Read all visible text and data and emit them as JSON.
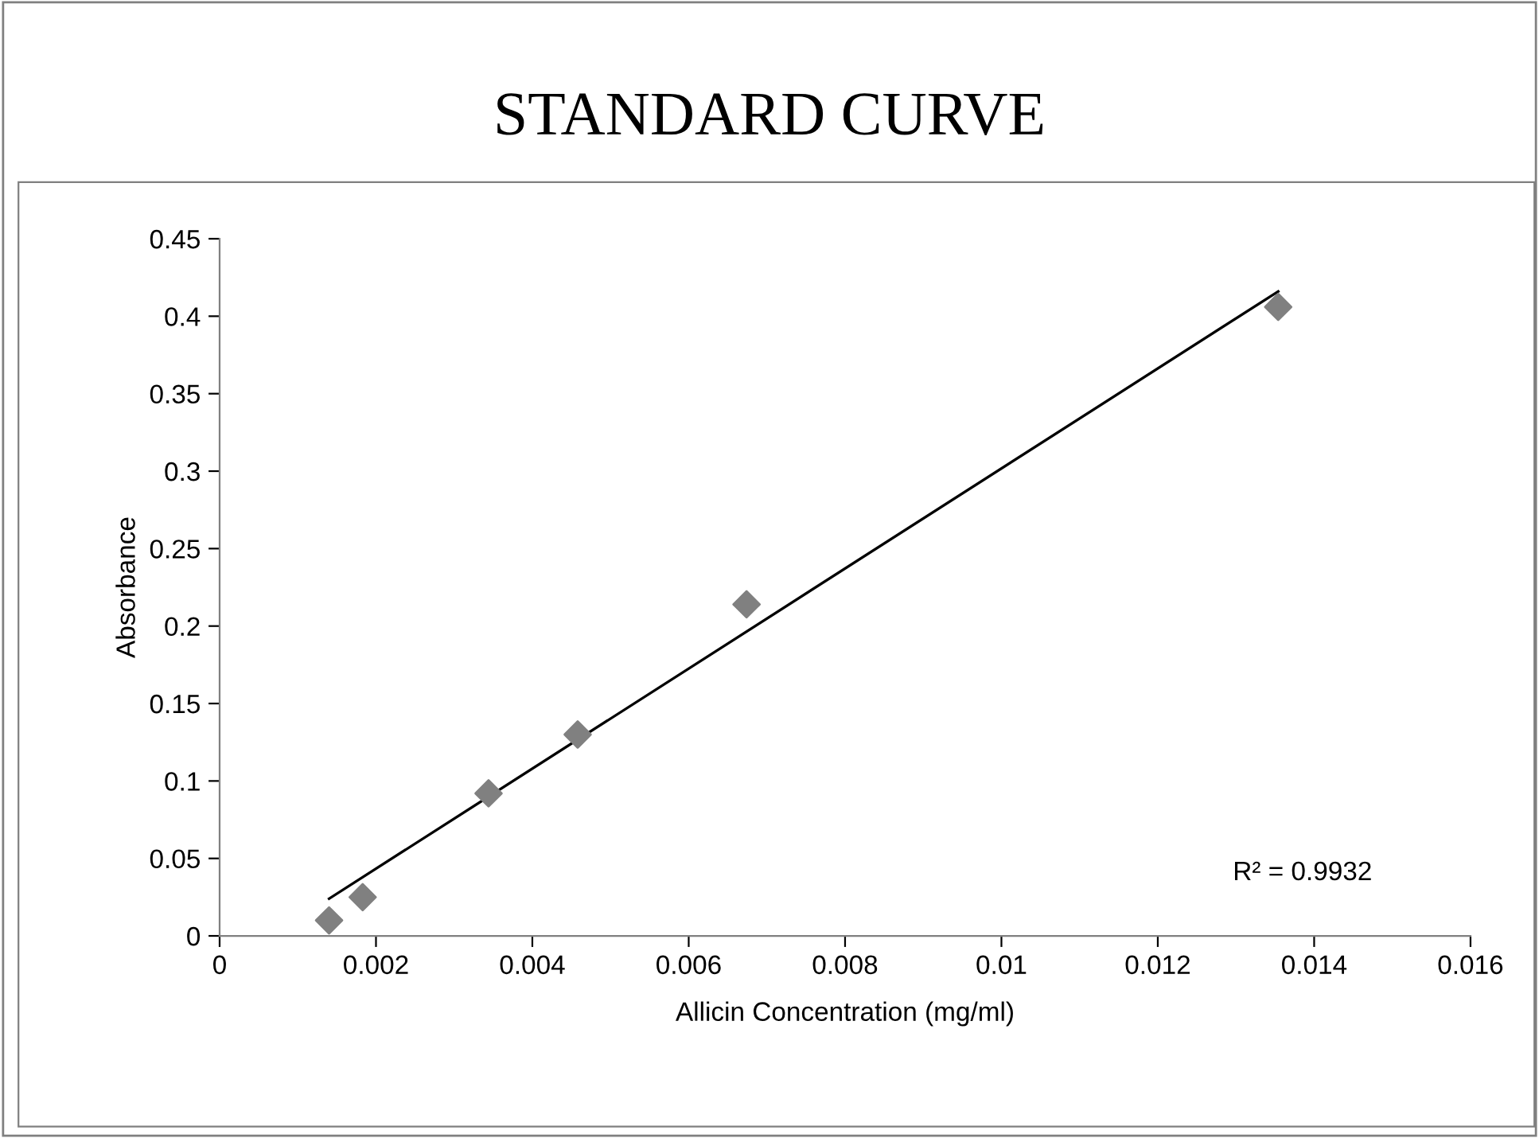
{
  "chart_data": {
    "type": "scatter",
    "title": "STANDARD CURVE",
    "xlabel": "Allicin Concentration (mg/ml)",
    "ylabel": "Absorbance",
    "series": [
      {
        "color": "#808080",
        "marker": "diamond",
        "x": [
          0.0014,
          0.00183,
          0.00344,
          0.00458,
          0.00674,
          0.01354
        ],
        "values": [
          0.01,
          0.025,
          0.092,
          0.13,
          0.214,
          0.406
        ]
      },
      {
        "type": "line",
        "color": "#000000",
        "marker": "none",
        "line_style": "solid",
        "x": [
          0.0014,
          0.01354
        ],
        "values": [
          0.024,
          0.416
        ]
      }
    ],
    "xlim": [
      0,
      0.016
    ],
    "xticks": [
      0,
      0.002,
      0.004,
      0.006,
      0.008,
      0.01,
      0.012,
      0.014,
      0.016
    ],
    "ylim": [
      0,
      0.45
    ],
    "yticks": [
      0,
      0.05,
      0.1,
      0.15,
      0.2,
      0.25,
      0.3,
      0.35,
      0.4,
      0.45
    ],
    "grid": false,
    "legend": false,
    "annotations": [
      "R² = 0.9932"
    ]
  }
}
